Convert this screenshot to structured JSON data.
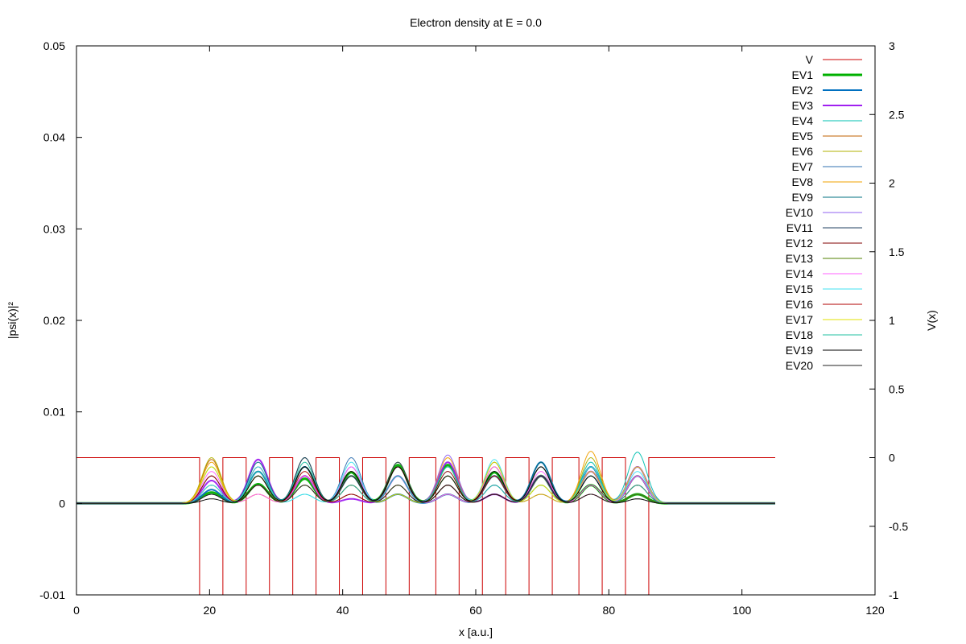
{
  "chart_data": {
    "type": "line",
    "title": "Electron density at E = 0.0",
    "xlabel": "x [a.u.]",
    "ylabel": "|psi(x)|²",
    "y2label": "V(x)",
    "xlim": [
      0,
      120
    ],
    "ylim": [
      -0.01,
      0.05
    ],
    "y2lim": [
      -1,
      3
    ],
    "xticks": [
      "0",
      "20",
      "40",
      "60",
      "80",
      "100",
      "120"
    ],
    "yticks": [
      "-0.01",
      "0",
      "0.01",
      "0.02",
      "0.03",
      "0.04",
      "0.05"
    ],
    "y2ticks": [
      "-1",
      "-0.5",
      "0",
      "0.5",
      "1",
      "1.5",
      "2",
      "2.5",
      "3"
    ],
    "grid": false,
    "legend_position": "top-right",
    "potential": {
      "name": "V",
      "color": "#cc0000",
      "axis": "y2",
      "x_range": [
        0,
        105
      ],
      "barrier_level": 0,
      "well_level": -1,
      "wells": [
        [
          18.5,
          22
        ],
        [
          25.5,
          29
        ],
        [
          32.5,
          36
        ],
        [
          39.5,
          43
        ],
        [
          46.5,
          50
        ],
        [
          54,
          57.5
        ],
        [
          61,
          64.5
        ],
        [
          68,
          71.5
        ],
        [
          75.5,
          79
        ],
        [
          82.5,
          86
        ]
      ]
    },
    "well_centers": [
      20.3,
      27.3,
      34.3,
      41.3,
      48.3,
      55.8,
      62.8,
      69.8,
      77.3,
      84.3
    ],
    "series": [
      {
        "name": "EV1",
        "color": "#00b000",
        "width": 3,
        "peaks": [
          0.0012,
          0.0021,
          0.0027,
          0.0034,
          0.0042,
          0.0042,
          0.0034,
          0.003,
          0.002,
          0.001
        ]
      },
      {
        "name": "EV2",
        "color": "#0070c0",
        "width": 2,
        "peaks": [
          0.0015,
          0.0035,
          0.004,
          0.003,
          0.001,
          0.001,
          0.003,
          0.0045,
          0.004,
          0.003
        ]
      },
      {
        "name": "EV3",
        "color": "#a020f0",
        "width": 2,
        "peaks": [
          0.0025,
          0.0048,
          0.003,
          0.0005,
          0.003,
          0.0045,
          0.001,
          0.003,
          0.0035,
          0.004
        ]
      },
      {
        "name": "EV4",
        "color": "#00c0b0",
        "width": 1,
        "peaks": [
          0.004,
          0.003,
          0.001,
          0.004,
          0.002,
          0.003,
          0.004,
          0.001,
          0.0045,
          0.0056
        ]
      },
      {
        "name": "EV5",
        "color": "#c06000",
        "width": 1,
        "peaks": [
          0.0048,
          0.002,
          0.004,
          0.001,
          0.004,
          0.002,
          0.001,
          0.004,
          0.003,
          0.002
        ]
      },
      {
        "name": "EV6",
        "color": "#b0b000",
        "width": 1,
        "peaks": [
          0.005,
          0.001,
          0.004,
          0.002,
          0.0045,
          0.001,
          0.004,
          0.002,
          0.005,
          0.003
        ]
      },
      {
        "name": "EV7",
        "color": "#3070b0",
        "width": 1,
        "peaks": [
          0.003,
          0.004,
          0.002,
          0.005,
          0.001,
          0.004,
          0.003,
          0.0045,
          0.002,
          0.001
        ]
      },
      {
        "name": "EV8",
        "color": "#f0a000",
        "width": 1,
        "peaks": [
          0.0045,
          0.001,
          0.005,
          0.003,
          0.002,
          0.005,
          0.004,
          0.001,
          0.0057,
          0.003
        ]
      },
      {
        "name": "EV9",
        "color": "#007080",
        "width": 1,
        "peaks": [
          0.002,
          0.0045,
          0.005,
          0.001,
          0.004,
          0.003,
          0.002,
          0.0045,
          0.003,
          0.002
        ]
      },
      {
        "name": "EV10",
        "color": "#9060f0",
        "width": 1,
        "peaks": [
          0.001,
          0.003,
          0.002,
          0.004,
          0.003,
          0.0053,
          0.002,
          0.003,
          0.001,
          0.004
        ]
      },
      {
        "name": "EV11",
        "color": "#204060",
        "width": 1,
        "peaks": [
          0.003,
          0.002,
          0.005,
          0.003,
          0.0045,
          0.002,
          0.0045,
          0.003,
          0.004,
          0.001
        ]
      },
      {
        "name": "EV12",
        "color": "#800000",
        "width": 1,
        "peaks": [
          0.001,
          0.004,
          0.003,
          0.002,
          0.004,
          0.0035,
          0.001,
          0.004,
          0.002,
          0.003
        ]
      },
      {
        "name": "EV13",
        "color": "#508000",
        "width": 1,
        "peaks": [
          0.002,
          0.003,
          0.004,
          0.0035,
          0.001,
          0.004,
          0.003,
          0.002,
          0.004,
          0.001
        ]
      },
      {
        "name": "EV14",
        "color": "#ff60ff",
        "width": 1,
        "peaks": [
          0.0035,
          0.001,
          0.003,
          0.004,
          0.003,
          0.001,
          0.004,
          0.0035,
          0.002,
          0.003
        ]
      },
      {
        "name": "EV15",
        "color": "#40e0f0",
        "width": 1,
        "peaks": [
          0.002,
          0.004,
          0.001,
          0.0045,
          0.003,
          0.004,
          0.0048,
          0.002,
          0.004,
          0.0035
        ]
      },
      {
        "name": "EV16",
        "color": "#b00000",
        "width": 1,
        "peaks": [
          0.003,
          0.002,
          0.0035,
          0.001,
          0.004,
          0.002,
          0.003,
          0.004,
          0.001,
          0.002
        ]
      },
      {
        "name": "EV17",
        "color": "#e0e000",
        "width": 1,
        "peaks": [
          0.004,
          0.003,
          0.002,
          0.003,
          0.001,
          0.003,
          0.0045,
          0.002,
          0.0035,
          0.004
        ]
      },
      {
        "name": "EV18",
        "color": "#20c0a0",
        "width": 1,
        "peaks": [
          0.001,
          0.0035,
          0.0045,
          0.002,
          0.003,
          0.004,
          0.002,
          0.004,
          0.003,
          0.002
        ]
      },
      {
        "name": "EV19",
        "color": "#000000",
        "width": 1,
        "peaks": [
          0.0005,
          0.003,
          0.004,
          0.0035,
          0.004,
          0.003,
          0.0035,
          0.004,
          0.003,
          0.0005
        ]
      },
      {
        "name": "EV20",
        "color": "#202020",
        "width": 1,
        "peaks": [
          0.001,
          0.002,
          0.002,
          0.003,
          0.002,
          0.002,
          0.001,
          0.003,
          0.001,
          0.0005
        ]
      }
    ],
    "peak_width": 1.4
  }
}
